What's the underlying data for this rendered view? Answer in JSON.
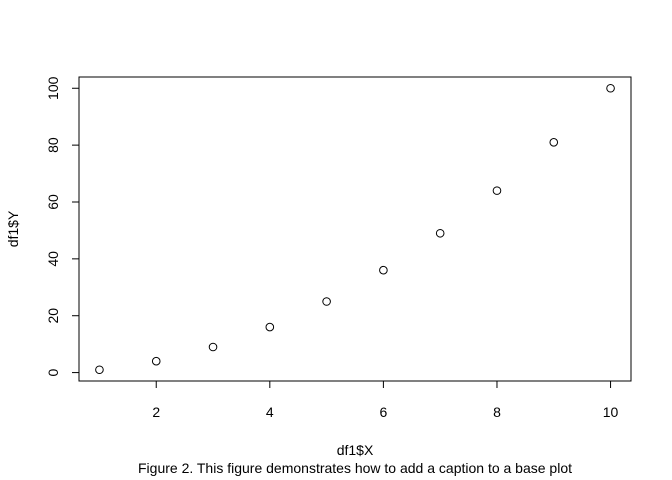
{
  "chart_data": {
    "type": "scatter",
    "x": [
      1,
      2,
      3,
      4,
      5,
      6,
      7,
      8,
      9,
      10
    ],
    "y": [
      1,
      4,
      9,
      16,
      25,
      36,
      49,
      64,
      81,
      100
    ],
    "xlabel": "df1$X",
    "ylabel": "df1$Y",
    "caption": "Figure 2. This figure demonstrates how to add a caption to a base plot",
    "xlim": [
      0.64,
      10.36
    ],
    "ylim": [
      -2.96,
      103.96
    ],
    "xticks": [
      2,
      4,
      6,
      8,
      10
    ],
    "yticks": [
      0,
      20,
      40,
      60,
      80,
      100
    ],
    "marker": "open-circle",
    "grid": false,
    "colors": {
      "point_stroke": "#000000",
      "axis": "#000000",
      "background": "#ffffff"
    }
  }
}
